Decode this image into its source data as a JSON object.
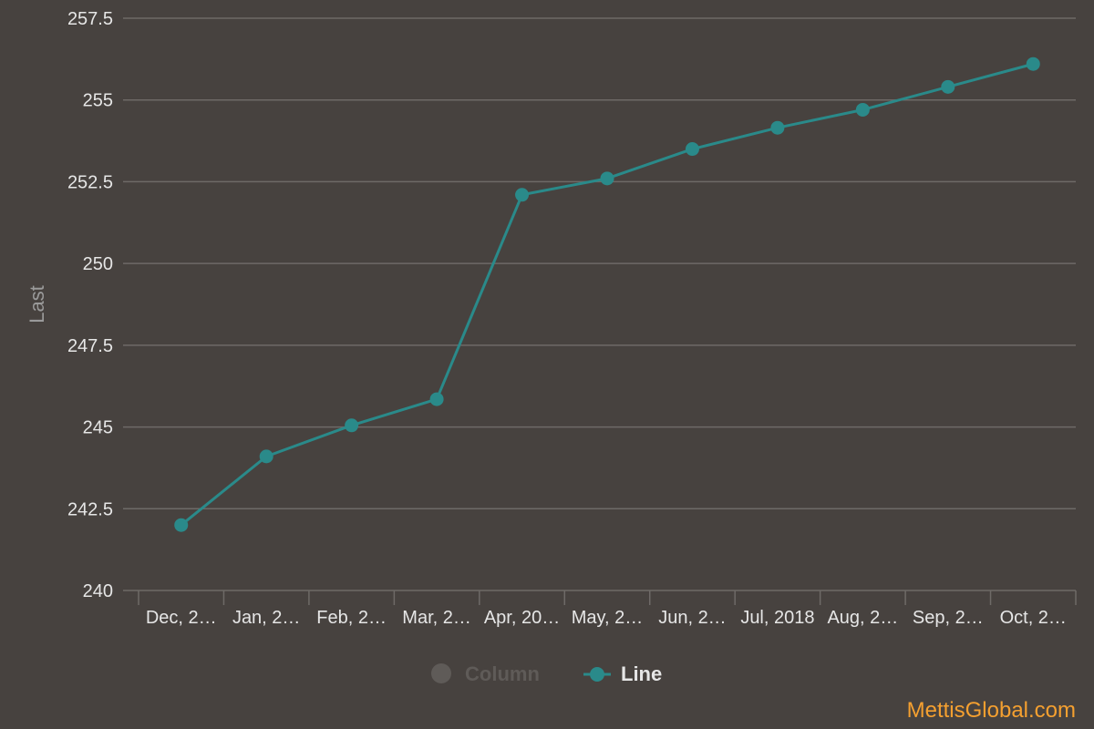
{
  "chart_data": {
    "type": "line",
    "title": "",
    "xlabel": "",
    "ylabel": "Last",
    "categories": [
      "Dec, 2…",
      "Jan, 2…",
      "Feb, 2…",
      "Mar, 2…",
      "Apr, 20…",
      "May, 2…",
      "Jun, 2…",
      "Jul, 2018",
      "Aug, 2…",
      "Sep, 2…",
      "Oct, 2…"
    ],
    "series": [
      {
        "name": "Line",
        "values": [
          242.0,
          244.1,
          245.05,
          245.85,
          252.1,
          252.6,
          253.5,
          254.15,
          254.7,
          255.4,
          256.1
        ]
      }
    ],
    "ylim": [
      240,
      257.5
    ],
    "yticks": [
      "240",
      "242.5",
      "245",
      "247.5",
      "250",
      "252.5",
      "255",
      "257.5"
    ],
    "grid": true,
    "legend": [
      {
        "label": "Column",
        "state": "hidden"
      },
      {
        "label": "Line",
        "state": "visible"
      }
    ],
    "legend_position": "bottom-center",
    "colors": {
      "background": "#47423f",
      "line": "#2a8a8a",
      "grid": "#6e6a67",
      "text": "#e6e6e6",
      "legend_hidden": "#5f5b58",
      "watermark": "#f5a030"
    }
  },
  "watermark": "MettisGlobal.com"
}
